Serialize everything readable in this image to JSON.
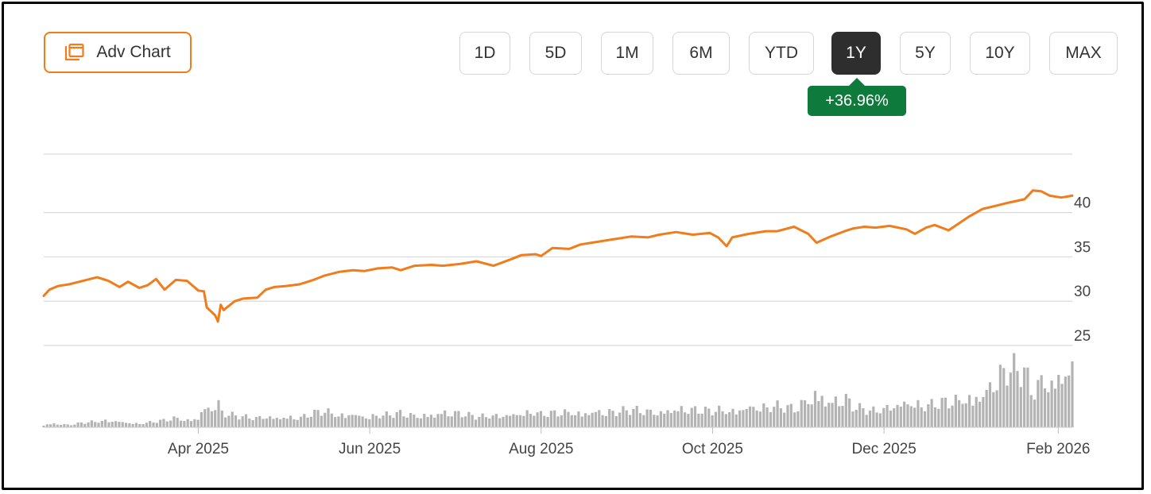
{
  "toolbar": {
    "adv_chart_label": "Adv Chart",
    "adv_chart_icon": "layers-icon",
    "ranges": [
      "1D",
      "5D",
      "1M",
      "6M",
      "YTD",
      "1Y",
      "5Y",
      "10Y",
      "MAX"
    ],
    "active_range": "1Y",
    "change_badge": "+36.96%"
  },
  "colors": {
    "accent": "#f07c1b",
    "line": "#f07c1b",
    "volume": "#b3b3b3",
    "active_button": "#2e2e2e",
    "positive_badge": "#0e7a3c",
    "grid": "#d9d9d9"
  },
  "chart_data": {
    "type": "line",
    "title": "",
    "xlabel": "",
    "ylabel": "",
    "grid": true,
    "y_axis_position": "right",
    "ylim": [
      25,
      46.6
    ],
    "yticks": [
      25,
      30,
      35,
      40
    ],
    "xlim": [
      "2025-02-05",
      "2026-02-06"
    ],
    "xticks": [
      {
        "date": "2025-04-01",
        "label": "Apr 2025"
      },
      {
        "date": "2025-06-01",
        "label": "Jun 2025"
      },
      {
        "date": "2025-08-01",
        "label": "Aug 2025"
      },
      {
        "date": "2025-10-01",
        "label": "Oct 2025"
      },
      {
        "date": "2025-12-01",
        "label": "Dec 2025"
      },
      {
        "date": "2026-02-01",
        "label": "Feb 2026"
      }
    ],
    "series": [
      {
        "x": [
          "2025-02-05",
          "2025-02-07",
          "2025-02-10",
          "2025-02-14",
          "2025-02-19",
          "2025-02-24",
          "2025-02-28",
          "2025-03-04",
          "2025-03-07",
          "2025-03-11",
          "2025-03-14",
          "2025-03-17",
          "2025-03-20",
          "2025-03-24",
          "2025-03-28",
          "2025-04-01",
          "2025-04-03",
          "2025-04-04",
          "2025-04-07",
          "2025-04-08",
          "2025-04-09",
          "2025-04-10",
          "2025-04-14",
          "2025-04-17",
          "2025-04-22",
          "2025-04-25",
          "2025-04-28",
          "2025-05-02",
          "2025-05-07",
          "2025-05-12",
          "2025-05-16",
          "2025-05-21",
          "2025-05-26",
          "2025-05-30",
          "2025-06-04",
          "2025-06-09",
          "2025-06-12",
          "2025-06-17",
          "2025-06-23",
          "2025-06-27",
          "2025-07-03",
          "2025-07-09",
          "2025-07-15",
          "2025-07-21",
          "2025-07-25",
          "2025-07-30",
          "2025-08-01",
          "2025-08-05",
          "2025-08-11",
          "2025-08-15",
          "2025-08-21",
          "2025-08-27",
          "2025-09-02",
          "2025-09-08",
          "2025-09-12",
          "2025-09-18",
          "2025-09-24",
          "2025-09-30",
          "2025-10-03",
          "2025-10-06",
          "2025-10-08",
          "2025-10-14",
          "2025-10-20",
          "2025-10-24",
          "2025-10-30",
          "2025-11-04",
          "2025-11-07",
          "2025-11-12",
          "2025-11-17",
          "2025-11-20",
          "2025-11-24",
          "2025-11-28",
          "2025-12-03",
          "2025-12-09",
          "2025-12-12",
          "2025-12-16",
          "2025-12-19",
          "2025-12-24",
          "2025-12-31",
          "2026-01-05",
          "2026-01-09",
          "2026-01-14",
          "2026-01-20",
          "2026-01-23",
          "2026-01-26",
          "2026-01-29",
          "2026-02-02",
          "2026-02-04",
          "2026-02-06"
        ],
        "values": [
          30.6,
          31.3,
          31.7,
          31.9,
          32.3,
          32.7,
          32.3,
          31.6,
          32.2,
          31.5,
          31.8,
          32.5,
          31.3,
          32.4,
          32.3,
          31.2,
          31.1,
          29.3,
          28.4,
          27.7,
          29.6,
          29.0,
          30.0,
          30.3,
          30.4,
          31.3,
          31.6,
          31.7,
          31.9,
          32.4,
          32.9,
          33.3,
          33.5,
          33.4,
          33.7,
          33.8,
          33.5,
          34.0,
          34.1,
          34.0,
          34.2,
          34.5,
          34.0,
          34.7,
          35.2,
          35.3,
          35.1,
          36.0,
          35.9,
          36.4,
          36.7,
          37.0,
          37.3,
          37.2,
          37.5,
          37.8,
          37.5,
          37.7,
          37.2,
          36.2,
          37.2,
          37.6,
          37.9,
          37.9,
          38.4,
          37.6,
          36.6,
          37.3,
          37.9,
          38.2,
          38.4,
          38.3,
          38.5,
          38.1,
          37.6,
          38.3,
          38.6,
          38.0,
          39.5,
          40.4,
          40.7,
          41.1,
          41.5,
          42.5,
          42.4,
          41.9,
          41.7,
          41.8,
          41.9
        ],
        "volume": [
          2,
          3,
          3,
          2,
          4,
          5,
          6,
          5,
          4,
          3,
          4,
          5,
          6,
          8,
          6,
          8,
          18,
          15,
          20,
          22,
          14,
          12,
          10,
          9,
          8,
          10,
          8,
          9,
          8,
          12,
          14,
          10,
          12,
          9,
          10,
          11,
          12,
          10,
          11,
          13,
          12,
          9,
          10,
          11,
          12,
          13,
          11,
          12,
          13,
          12,
          14,
          13,
          15,
          14,
          13,
          16,
          15,
          14,
          15,
          14,
          14,
          18,
          17,
          18,
          16,
          24,
          30,
          22,
          26,
          18,
          15,
          14,
          18,
          22,
          20,
          18,
          20,
          22,
          25,
          28,
          40,
          50,
          48,
          30,
          42,
          38,
          45,
          50,
          48
        ]
      }
    ]
  }
}
